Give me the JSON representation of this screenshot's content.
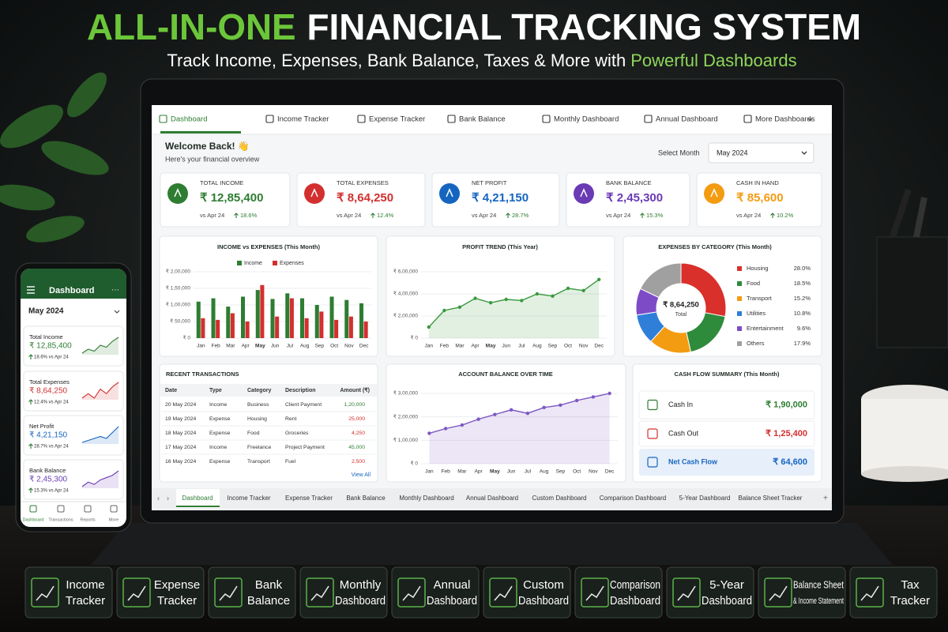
{
  "header": {
    "title_highlight": "ALL-IN-ONE",
    "title": "FINANCIAL TRACKING SYSTEM",
    "subtitle": "Track Income, Expenses, Bank Balance, Taxes & More with",
    "subtitle_highlight": "Powerful Dashboards"
  },
  "nav": {
    "tabs": [
      "Dashboard",
      "Income Tracker",
      "Expense Tracker",
      "Bank Balance",
      "Monthly Dashboard",
      "Annual Dashboard",
      "More Dashboards"
    ]
  },
  "welcome": {
    "title": "Welcome Back! 👋",
    "subtitle": "Here's your financial overview",
    "select_label": "Select Month",
    "selected_month": "May 2024"
  },
  "kpis": [
    {
      "label": "TOTAL INCOME",
      "value": "₹ 12,85,400",
      "compare": "vs Apr 24",
      "change": "18.6%",
      "color": "#2e7d32"
    },
    {
      "label": "TOTAL EXPENSES",
      "value": "₹ 8,64,250",
      "compare": "vs Apr 24",
      "change": "12.4%",
      "color": "#d32f2f"
    },
    {
      "label": "NET PROFIT",
      "value": "₹ 4,21,150",
      "compare": "vs Apr 24",
      "change": "28.7%",
      "color": "#1565c0"
    },
    {
      "label": "BANK BALANCE",
      "value": "₹ 2,45,300",
      "compare": "vs Apr 24",
      "change": "15.3%",
      "color": "#6a3bb5"
    },
    {
      "label": "CASH IN HAND",
      "value": "₹ 85,600",
      "compare": "vs Apr 24",
      "change": "10.2%",
      "color": "#f39c12"
    }
  ],
  "charts": [
    {
      "type": "bar",
      "title": "INCOME vs EXPENSES (This Month)",
      "categories": [
        "Jan",
        "Feb",
        "Mar",
        "Apr",
        "May",
        "Jun",
        "Jul",
        "Aug",
        "Sep",
        "Oct",
        "Nov",
        "Dec"
      ],
      "series": [
        {
          "name": "Income",
          "color": "#2e7d32",
          "values": [
            110000,
            120000,
            95000,
            125000,
            145000,
            118000,
            135000,
            120000,
            100000,
            125000,
            115000,
            105000
          ]
        },
        {
          "name": "Expenses",
          "color": "#d32f2f",
          "values": [
            60000,
            55000,
            75000,
            50000,
            160000,
            65000,
            120000,
            60000,
            80000,
            55000,
            65000,
            50000
          ]
        }
      ],
      "ylim": [
        0,
        200000
      ],
      "yticks": [
        {
          "value": 0,
          "label": "₹ 0"
        },
        {
          "value": 50000,
          "label": "₹ 50,000"
        },
        {
          "value": 100000,
          "label": "₹ 1,00,000"
        },
        {
          "value": 150000,
          "label": "₹ 1,50,000"
        },
        {
          "value": 200000,
          "label": "₹ 2,00,000"
        }
      ]
    },
    {
      "type": "line",
      "title": "PROFIT TREND (This Year)",
      "categories": [
        "Jan",
        "Feb",
        "Mar",
        "Apr",
        "May",
        "Jun",
        "Jul",
        "Aug",
        "Sep",
        "Oct",
        "Nov",
        "Dec"
      ],
      "color": "#3a9a3e",
      "values": [
        100000,
        250000,
        280000,
        360000,
        320000,
        350000,
        340000,
        400000,
        380000,
        450000,
        430000,
        530000
      ],
      "ylim": [
        0,
        600000
      ],
      "yticks": [
        {
          "value": 0,
          "label": "₹ 0"
        },
        {
          "value": 200000,
          "label": "₹ 2,00,000"
        },
        {
          "value": 400000,
          "label": "₹ 4,00,000"
        },
        {
          "value": 600000,
          "label": "₹ 6,00,000"
        }
      ]
    },
    {
      "type": "pie",
      "title": "EXPENSES BY CATEGORY (This Month)",
      "categories": [
        "Housing",
        "Food",
        "Transport",
        "Utilities",
        "Entertainment",
        "Others"
      ],
      "values": [
        28.0,
        18.5,
        15.2,
        10.8,
        9.6,
        17.9
      ],
      "value_labels": [
        "28.0%",
        "18.5%",
        "15.2%",
        "10.8%",
        "9.6%",
        "17.9%"
      ],
      "colors": [
        "#d9302c",
        "#2e8b3c",
        "#f39c12",
        "#2f7fd8",
        "#7e4bc7",
        "#a0a0a0"
      ],
      "center_value": "₹ 8,64,250",
      "center_label": "Total"
    },
    {
      "type": "line",
      "title": "ACCOUNT BALANCE OVER TIME",
      "categories": [
        "Jan",
        "Feb",
        "Mar",
        "Apr",
        "May",
        "Jun",
        "Jul",
        "Aug",
        "Sep",
        "Oct",
        "Nov",
        "Dec"
      ],
      "color": "#7e57c2",
      "values": [
        130000,
        150000,
        165000,
        190000,
        210000,
        230000,
        215000,
        240000,
        250000,
        270000,
        285000,
        300000
      ],
      "ylim": [
        0,
        300000
      ],
      "yticks": [
        {
          "value": 0,
          "label": "₹ 0"
        },
        {
          "value": 100000,
          "label": "₹ 1,00,000"
        },
        {
          "value": 200000,
          "label": "₹ 2,00,000"
        },
        {
          "value": 300000,
          "label": "₹ 3,00,000"
        }
      ]
    }
  ],
  "transactions": {
    "title": "RECENT TRANSACTIONS",
    "columns": [
      "Date",
      "Type",
      "Category",
      "Description",
      "Amount (₹)"
    ],
    "rows": [
      [
        "20 May 2024",
        "Income",
        "Business",
        "Client Payment",
        "1,20,000"
      ],
      [
        "19 May 2024",
        "Expense",
        "Housing",
        "Rent",
        "25,000"
      ],
      [
        "18 May 2024",
        "Expense",
        "Food",
        "Groceries",
        "4,250"
      ],
      [
        "17 May 2024",
        "Income",
        "Freelance",
        "Project Payment",
        "45,000"
      ],
      [
        "16 May 2024",
        "Expense",
        "Transport",
        "Fuel",
        "2,500"
      ]
    ],
    "type_colors": {
      "Income": "#2e7d32",
      "Expense": "#d32f2f"
    },
    "link": "View All"
  },
  "cash_flow": {
    "title": "CASH FLOW SUMMARY (This Month)",
    "items": [
      {
        "label": "Cash In",
        "value": "₹ 1,90,000",
        "color": "#2e7d32"
      },
      {
        "label": "Cash Out",
        "value": "₹ 1,25,400",
        "color": "#d32f2f"
      },
      {
        "label": "Net Cash Flow",
        "value": "₹ 64,600",
        "color": "#1565c0"
      }
    ]
  },
  "sheet_tabs": [
    "Dashboard",
    "Income Tracker",
    "Expense Tracker",
    "Bank Balance",
    "Monthly Dashboard",
    "Annual Dashboard",
    "Custom Dashboard",
    "Comparison Dashboard",
    "5-Year Dashboard",
    "Balance Sheet Tracker"
  ],
  "phone": {
    "title": "Dashboard",
    "month": "May 2024",
    "cards": [
      {
        "label": "Total Income",
        "value": "₹ 12,85,400",
        "change": "18.6% vs Apr 24",
        "color": "#2e7d32",
        "trend": [
          3,
          4,
          3.5,
          5,
          4.5,
          6,
          7
        ]
      },
      {
        "label": "Total Expenses",
        "value": "₹ 8,64,250",
        "change": "12.4% vs Apr 24",
        "color": "#d32f2f",
        "trend": [
          3,
          4,
          3,
          5,
          4,
          5.5,
          6.5
        ]
      },
      {
        "label": "Net Profit",
        "value": "₹ 4,21,150",
        "change": "28.7% vs Apr 24",
        "color": "#1565c0",
        "trend": [
          3,
          3.5,
          4,
          4.5,
          4,
          5.5,
          7
        ]
      },
      {
        "label": "Bank Balance",
        "value": "₹ 2,45,300",
        "change": "15.3% vs Apr 24",
        "color": "#6a3bb5",
        "trend": [
          3,
          4,
          3.5,
          4.5,
          5,
          5.5,
          6.5
        ]
      }
    ],
    "nav": [
      "Dashboard",
      "Transactions",
      "Reports",
      "More"
    ]
  },
  "features": [
    [
      "Income",
      "Tracker"
    ],
    [
      "Expense",
      "Tracker"
    ],
    [
      "Bank",
      "Balance"
    ],
    [
      "Monthly",
      "Dashboard"
    ],
    [
      "Annual",
      "Dashboard"
    ],
    [
      "Custom",
      "Dashboard"
    ],
    [
      "Comparison",
      "Dashboard"
    ],
    [
      "5-Year",
      "Dashboard"
    ],
    [
      "Balance Sheet",
      "& Income Statement"
    ],
    [
      "Tax",
      "Tracker"
    ]
  ]
}
